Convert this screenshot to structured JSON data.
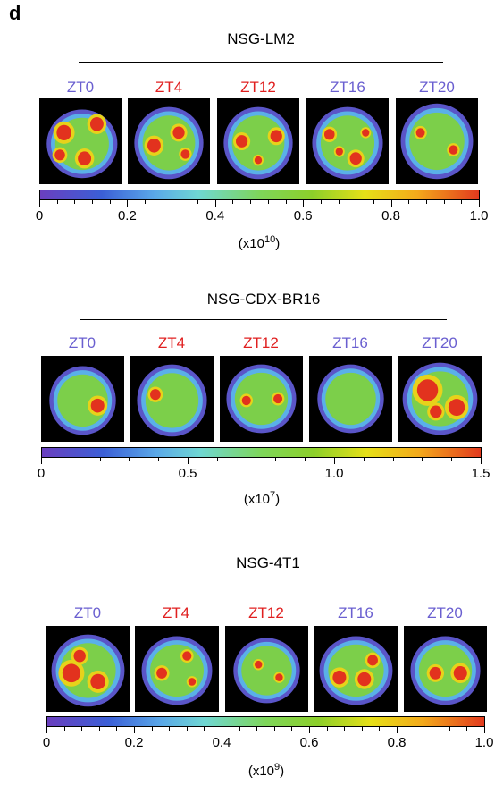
{
  "panel_letter": "d",
  "colors": {
    "blue_label": "#6a5fd0",
    "red_label": "#e02020"
  },
  "groups": [
    {
      "title": "NSG-LM2",
      "timepoints": [
        {
          "label": "ZT0",
          "color": "blue"
        },
        {
          "label": "ZT4",
          "color": "red"
        },
        {
          "label": "ZT12",
          "color": "red"
        },
        {
          "label": "ZT16",
          "color": "blue"
        },
        {
          "label": "ZT20",
          "color": "blue"
        }
      ],
      "scale_ticks": [
        "0",
        "0.2",
        "0.4",
        "0.6",
        "0.8",
        "1.0"
      ],
      "scale_base": "(x10",
      "scale_exp": "10",
      "scale_close": ")"
    },
    {
      "title": "NSG-CDX-BR16",
      "timepoints": [
        {
          "label": "ZT0",
          "color": "blue"
        },
        {
          "label": "ZT4",
          "color": "red"
        },
        {
          "label": "ZT12",
          "color": "red"
        },
        {
          "label": "ZT16",
          "color": "blue"
        },
        {
          "label": "ZT20",
          "color": "blue"
        }
      ],
      "scale_ticks": [
        "0",
        "0.5",
        "1.0",
        "1.5"
      ],
      "scale_base": "(x10",
      "scale_exp": "7",
      "scale_close": ")"
    },
    {
      "title": "NSG-4T1",
      "timepoints": [
        {
          "label": "ZT0",
          "color": "blue"
        },
        {
          "label": "ZT4",
          "color": "red"
        },
        {
          "label": "ZT12",
          "color": "red"
        },
        {
          "label": "ZT16",
          "color": "blue"
        },
        {
          "label": "ZT20",
          "color": "blue"
        }
      ],
      "scale_ticks": [
        "0",
        "0.2",
        "0.4",
        "0.6",
        "0.8",
        "1.0"
      ],
      "scale_base": "(x10",
      "scale_exp": "9",
      "scale_close": ")"
    }
  ]
}
